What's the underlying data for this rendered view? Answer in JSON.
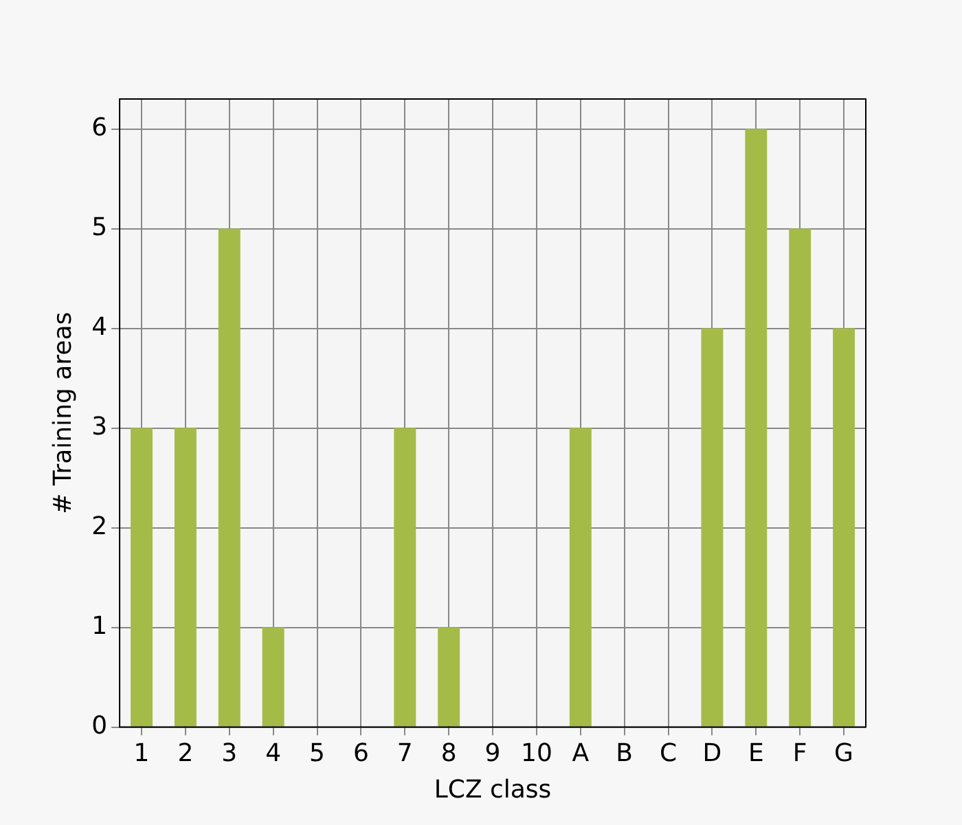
{
  "chart_data": {
    "type": "bar",
    "xlabel": "LCZ class",
    "ylabel": "# Training areas",
    "categories": [
      "1",
      "2",
      "3",
      "4",
      "5",
      "6",
      "7",
      "8",
      "9",
      "10",
      "A",
      "B",
      "C",
      "D",
      "E",
      "F",
      "G"
    ],
    "values": [
      3,
      3,
      5,
      1,
      0,
      0,
      3,
      1,
      0,
      0,
      3,
      0,
      0,
      4,
      6,
      5,
      4
    ],
    "color": "#a4bb47",
    "ylim": [
      0,
      6.3
    ],
    "yticks": [
      0,
      1,
      2,
      3,
      4,
      5,
      6
    ],
    "grid": true,
    "legend": false
  }
}
